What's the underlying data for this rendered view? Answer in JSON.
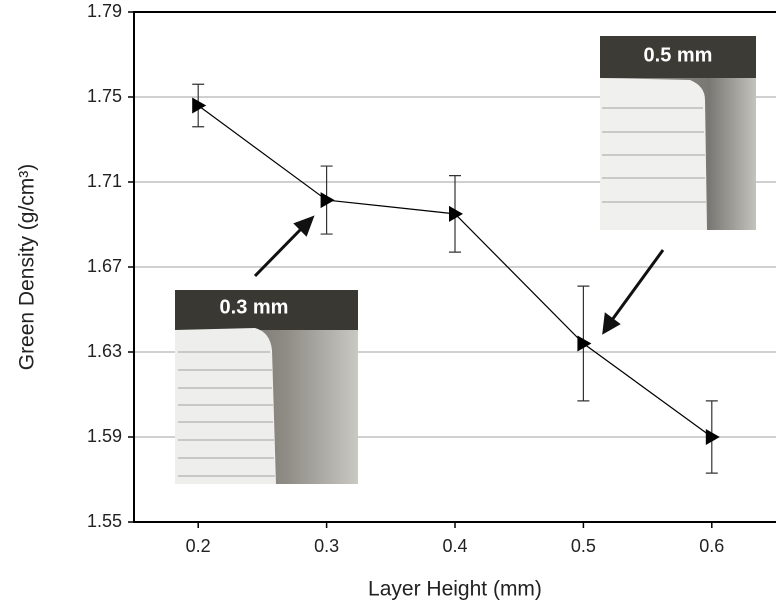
{
  "chart_data": {
    "type": "line",
    "x_label": "Layer Height (mm)",
    "y_label": "Green Density (g/cm³)",
    "x": [
      0.2,
      0.3,
      0.4,
      0.5,
      0.6
    ],
    "values": [
      1.746,
      1.7015,
      1.695,
      1.634,
      1.59
    ],
    "errors": [
      0.01,
      0.016,
      0.018,
      0.027,
      0.017
    ],
    "color": "#000000",
    "xlim": [
      0.15,
      0.65
    ],
    "xticks": [
      0.2,
      0.3,
      0.4,
      0.5,
      0.6
    ],
    "ylim": [
      1.55,
      1.79
    ],
    "yticks": [
      1.55,
      1.59,
      1.63,
      1.67,
      1.71,
      1.75,
      1.79
    ],
    "grid": true,
    "annotations": [
      "0.3 mm",
      "0.5 mm"
    ]
  }
}
